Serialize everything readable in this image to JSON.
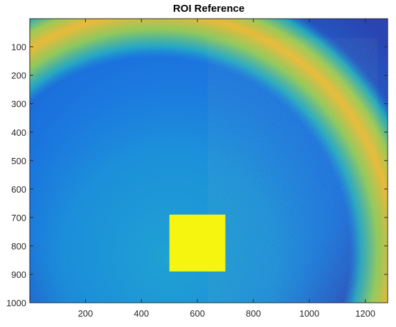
{
  "chart_data": {
    "type": "heatmap",
    "title": "ROI Reference",
    "xlabel": "",
    "ylabel": "",
    "xlim": [
      1,
      1280
    ],
    "ylim": [
      1,
      1000
    ],
    "y_reversed": true,
    "grid": false,
    "x_ticks": [
      200,
      400,
      600,
      800,
      1000,
      1200
    ],
    "y_ticks": [
      100,
      200,
      300,
      400,
      500,
      600,
      700,
      800,
      900,
      1000
    ],
    "colormap": "parula",
    "colors": {
      "background_dark": "#2b3fa8",
      "background_mid": "#1a78e0",
      "inner_region": "#1a95d8",
      "inner_region_light": "#22a6cf",
      "arc_outer": "#25b0c0",
      "arc_mid": "#7cc46b",
      "arc_peak": "#e8b93a",
      "roi_fill": "#f5f50f"
    },
    "roi": {
      "x": [
        500,
        700
      ],
      "y": [
        690,
        890
      ]
    },
    "arc": {
      "center_x": 450,
      "center_y": 820,
      "inner_radius": 700,
      "outer_radius": 940
    }
  }
}
